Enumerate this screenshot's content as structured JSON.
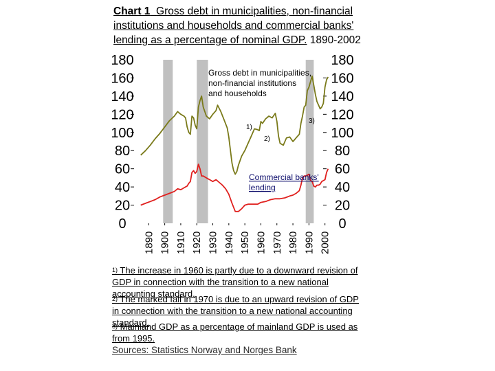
{
  "title": {
    "prefix": "Chart 1",
    "text": "Gross debt in municipalities, non-financial institutions and households and commercial banks' lending as a percentage of nominal GDP.",
    "years": "1890-2002"
  },
  "footnotes": [
    {
      "marker": "1)",
      "text": "The increase in 1960 is partly due to a downward revision of GDP in connection with the transition to a new national accounting standard."
    },
    {
      "marker": "2)",
      "text": "The marked fall in 1970 is due to an upward revision of GDP in connection with the transition to a new national accounting standard."
    },
    {
      "marker": "3)",
      "text": "Mainland GDP as a percentage of mainland GDP is used as from 1995."
    }
  ],
  "sources": "Sources: Statistics Norway and Norges Bank",
  "colors": {
    "gross_debt": "#7a7a1a",
    "lending": "#e0201e",
    "band": "#c0c0c0"
  },
  "chart_data": {
    "type": "line",
    "xlim": [
      1883,
      2004
    ],
    "ylim": [
      0,
      180
    ],
    "x_ticks": [
      1890,
      1900,
      1910,
      1920,
      1930,
      1940,
      1950,
      1960,
      1970,
      1980,
      1990,
      2000
    ],
    "y_ticks": [
      0,
      20,
      40,
      60,
      80,
      100,
      120,
      140,
      160,
      180
    ],
    "shaded_periods": [
      [
        1899,
        1905
      ],
      [
        1920,
        1927
      ],
      [
        1988,
        1993
      ]
    ],
    "annotations": [
      {
        "label": "Gross debt in municipalities, non-financial institutions and households",
        "x": 1960,
        "y": 150
      },
      {
        "label": "Commercial banks' lending",
        "x": 1960,
        "y": 45
      },
      {
        "label": "1)",
        "x": 1960,
        "y": 100
      },
      {
        "label": "2)",
        "x": 1970,
        "y": 90
      },
      {
        "label": "3)",
        "x": 1995,
        "y": 108
      }
    ],
    "series": [
      {
        "name": "Gross debt in municipalities, non-financial institutions and households",
        "x": [
          1885,
          1888,
          1891,
          1894,
          1897,
          1900,
          1903,
          1906,
          1908,
          1910,
          1912,
          1913,
          1914,
          1915,
          1916,
          1917,
          1918,
          1919,
          1920,
          1921,
          1922,
          1923,
          1924,
          1926,
          1928,
          1930,
          1932,
          1933,
          1935,
          1937,
          1939,
          1940,
          1941,
          1942,
          1943,
          1944,
          1945,
          1946,
          1948,
          1950,
          1952,
          1954,
          1956,
          1958,
          1959,
          1960,
          1961,
          1963,
          1965,
          1967,
          1969,
          1970,
          1971,
          1972,
          1974,
          1976,
          1978,
          1980,
          1982,
          1984,
          1985,
          1986,
          1987,
          1988,
          1989,
          1990,
          1991,
          1992,
          1993,
          1994,
          1995,
          1996,
          1997,
          1998,
          1999,
          2000,
          2001,
          2002
        ],
        "y": [
          75,
          80,
          86,
          93,
          99,
          106,
          113,
          118,
          123,
          120,
          118,
          116,
          106,
          100,
          98,
          118,
          116,
          108,
          104,
          128,
          135,
          140,
          128,
          118,
          115,
          120,
          124,
          130,
          123,
          114,
          105,
          95,
          80,
          66,
          58,
          54,
          57,
          64,
          74,
          80,
          88,
          96,
          104,
          103,
          102,
          112,
          110,
          115,
          118,
          116,
          121,
          112,
          96,
          88,
          86,
          94,
          95,
          90,
          94,
          98,
          110,
          118,
          128,
          130,
          146,
          150,
          156,
          162,
          152,
          142,
          134,
          130,
          126,
          128,
          132,
          150,
          158,
          161
        ]
      },
      {
        "name": "Commercial banks' lending",
        "x": [
          1885,
          1888,
          1891,
          1894,
          1897,
          1900,
          1903,
          1906,
          1908,
          1910,
          1912,
          1914,
          1915,
          1916,
          1917,
          1918,
          1919,
          1920,
          1921,
          1922,
          1923,
          1924,
          1926,
          1928,
          1930,
          1932,
          1934,
          1936,
          1938,
          1940,
          1942,
          1944,
          1946,
          1948,
          1950,
          1952,
          1955,
          1958,
          1960,
          1963,
          1966,
          1969,
          1970,
          1972,
          1975,
          1978,
          1980,
          1982,
          1984,
          1985,
          1986,
          1987,
          1988,
          1990,
          1991,
          1992,
          1993,
          1994,
          1995,
          1996,
          1997,
          1998,
          1999,
          2000,
          2001,
          2002
        ],
        "y": [
          20,
          22,
          24,
          26,
          29,
          31,
          33,
          35,
          38,
          37,
          39,
          41,
          44,
          46,
          56,
          58,
          55,
          57,
          65,
          60,
          52,
          52,
          50,
          48,
          46,
          48,
          45,
          42,
          38,
          32,
          22,
          13,
          13,
          16,
          20,
          21,
          21,
          21,
          23,
          24,
          26,
          27,
          27,
          27,
          28,
          30,
          31,
          33,
          36,
          42,
          50,
          52,
          52,
          54,
          47,
          46,
          41,
          40,
          42,
          42,
          43,
          46,
          47,
          48,
          56,
          60
        ]
      }
    ]
  }
}
